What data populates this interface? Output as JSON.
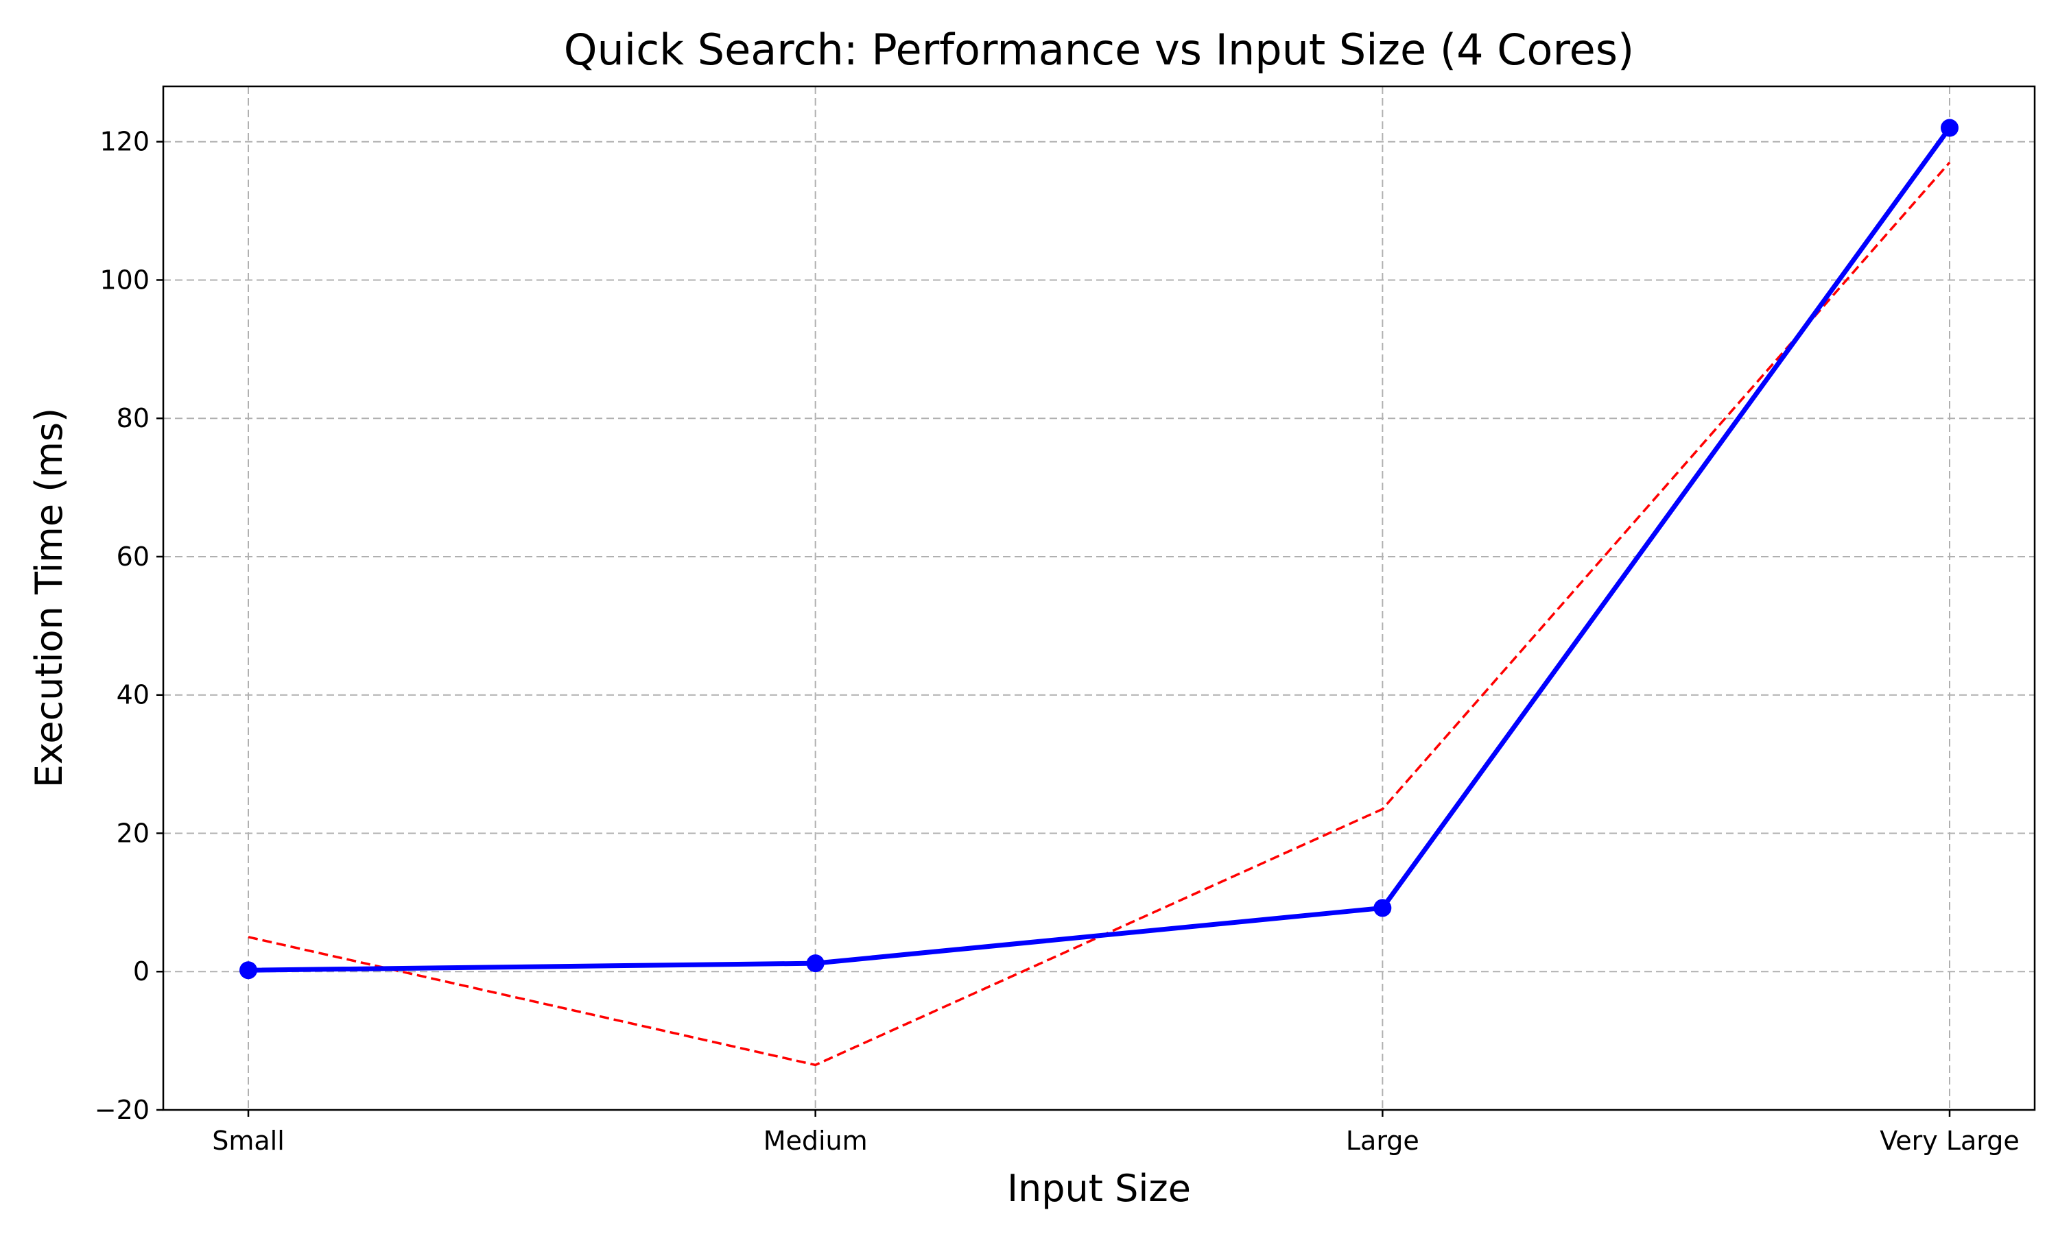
{
  "chart_data": {
    "type": "line",
    "title": "Quick Search: Performance vs Input Size (4 Cores)",
    "xlabel": "Input Size",
    "ylabel": "Execution Time (ms)",
    "categories": [
      "Small",
      "Medium",
      "Large",
      "Very Large"
    ],
    "ylim": [
      -20,
      128
    ],
    "yticks": [
      -20,
      0,
      20,
      40,
      60,
      80,
      100,
      120
    ],
    "ytick_labels": [
      "−20",
      "0",
      "20",
      "40",
      "60",
      "80",
      "100",
      "120"
    ],
    "grid": true,
    "series": [
      {
        "values": [
          0.2,
          1.2,
          9.2,
          122
        ],
        "color": "#0000ff",
        "style": "solid",
        "markers": true
      },
      {
        "values": [
          5,
          -13.5,
          23.5,
          117
        ],
        "color": "#ff0000",
        "style": "dashed",
        "markers": false
      }
    ]
  }
}
